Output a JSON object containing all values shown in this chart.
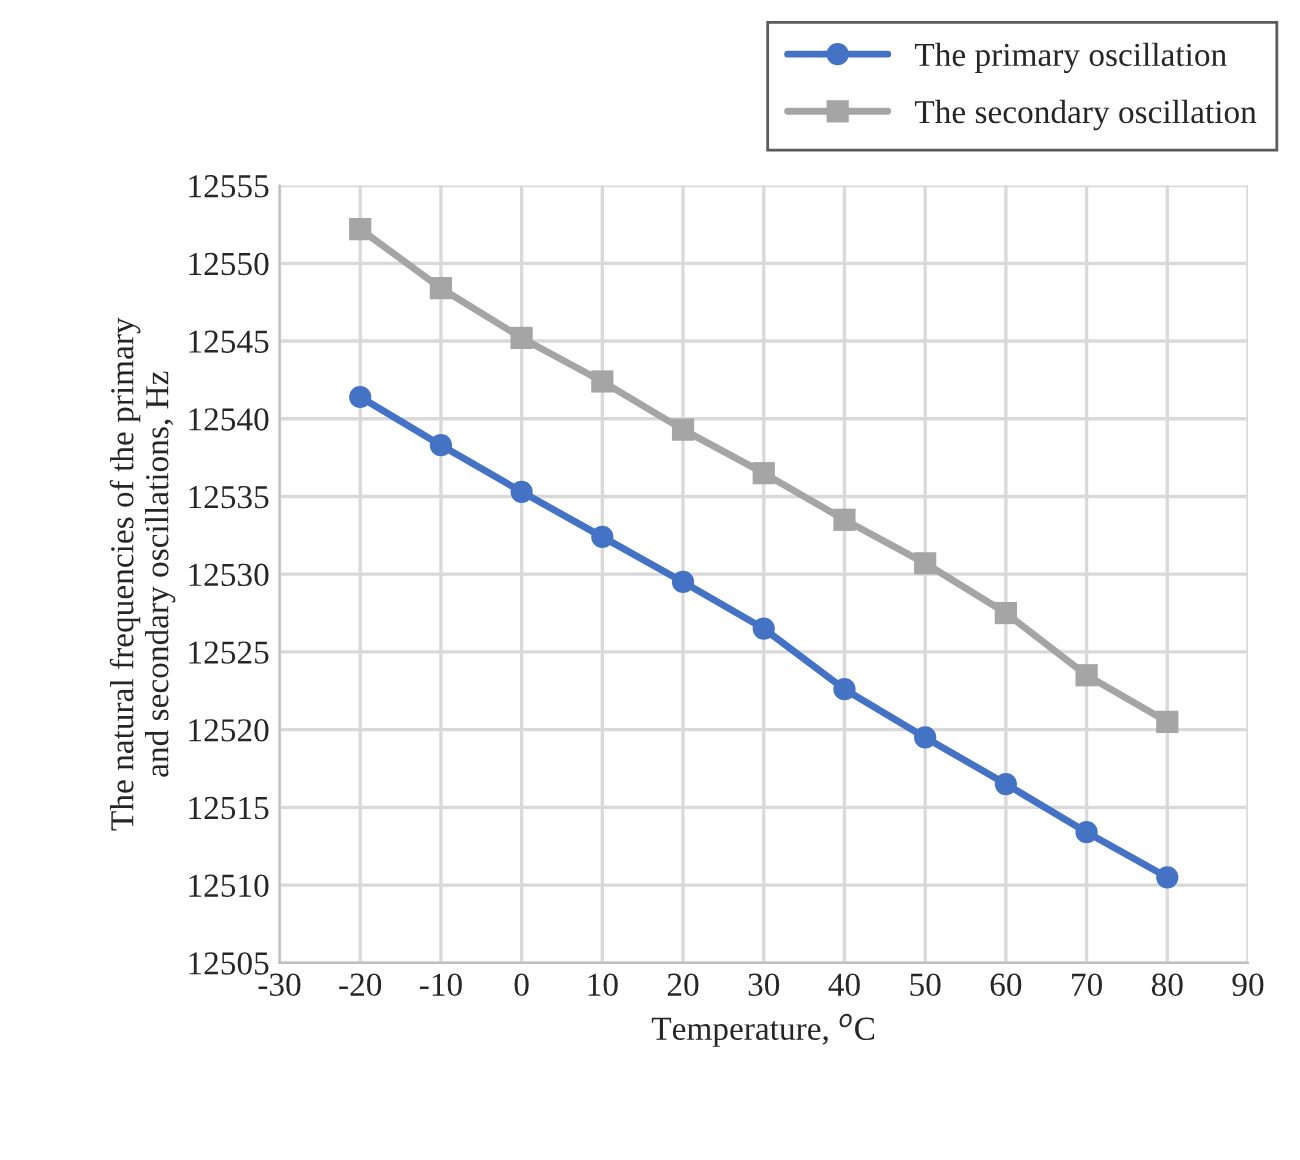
{
  "chart_data": {
    "type": "line",
    "xlabel": "Temperature, $^{o}$C",
    "ylabel": "The natural frequencies of the primary\nand secondary oscillations, Hz",
    "x": [
      -20,
      -10,
      0,
      10,
      20,
      30,
      40,
      50,
      60,
      70,
      80
    ],
    "series": [
      {
        "name": "The primary oscillation",
        "color": "#4472c4",
        "marker": "circle",
        "values": [
          12541.4,
          12538.3,
          12535.3,
          12532.4,
          12529.5,
          12526.5,
          12522.6,
          12519.5,
          12516.5,
          12513.4,
          12510.5
        ]
      },
      {
        "name": "The secondary oscillation",
        "color": "#a5a5a5",
        "marker": "square",
        "values": [
          12552.2,
          12548.4,
          12545.2,
          12542.4,
          12539.3,
          12536.5,
          12533.5,
          12530.7,
          12527.5,
          12523.5,
          12520.5
        ]
      }
    ],
    "xlim": [
      -30,
      90
    ],
    "xticks": [
      -30,
      -20,
      -10,
      0,
      10,
      20,
      30,
      40,
      50,
      60,
      70,
      80,
      90
    ],
    "ylim": [
      12505,
      12555
    ],
    "yticks": [
      12505,
      12510,
      12515,
      12520,
      12525,
      12530,
      12535,
      12540,
      12545,
      12550,
      12555
    ],
    "grid": true,
    "legend": "top right",
    "line_style": "solid"
  }
}
